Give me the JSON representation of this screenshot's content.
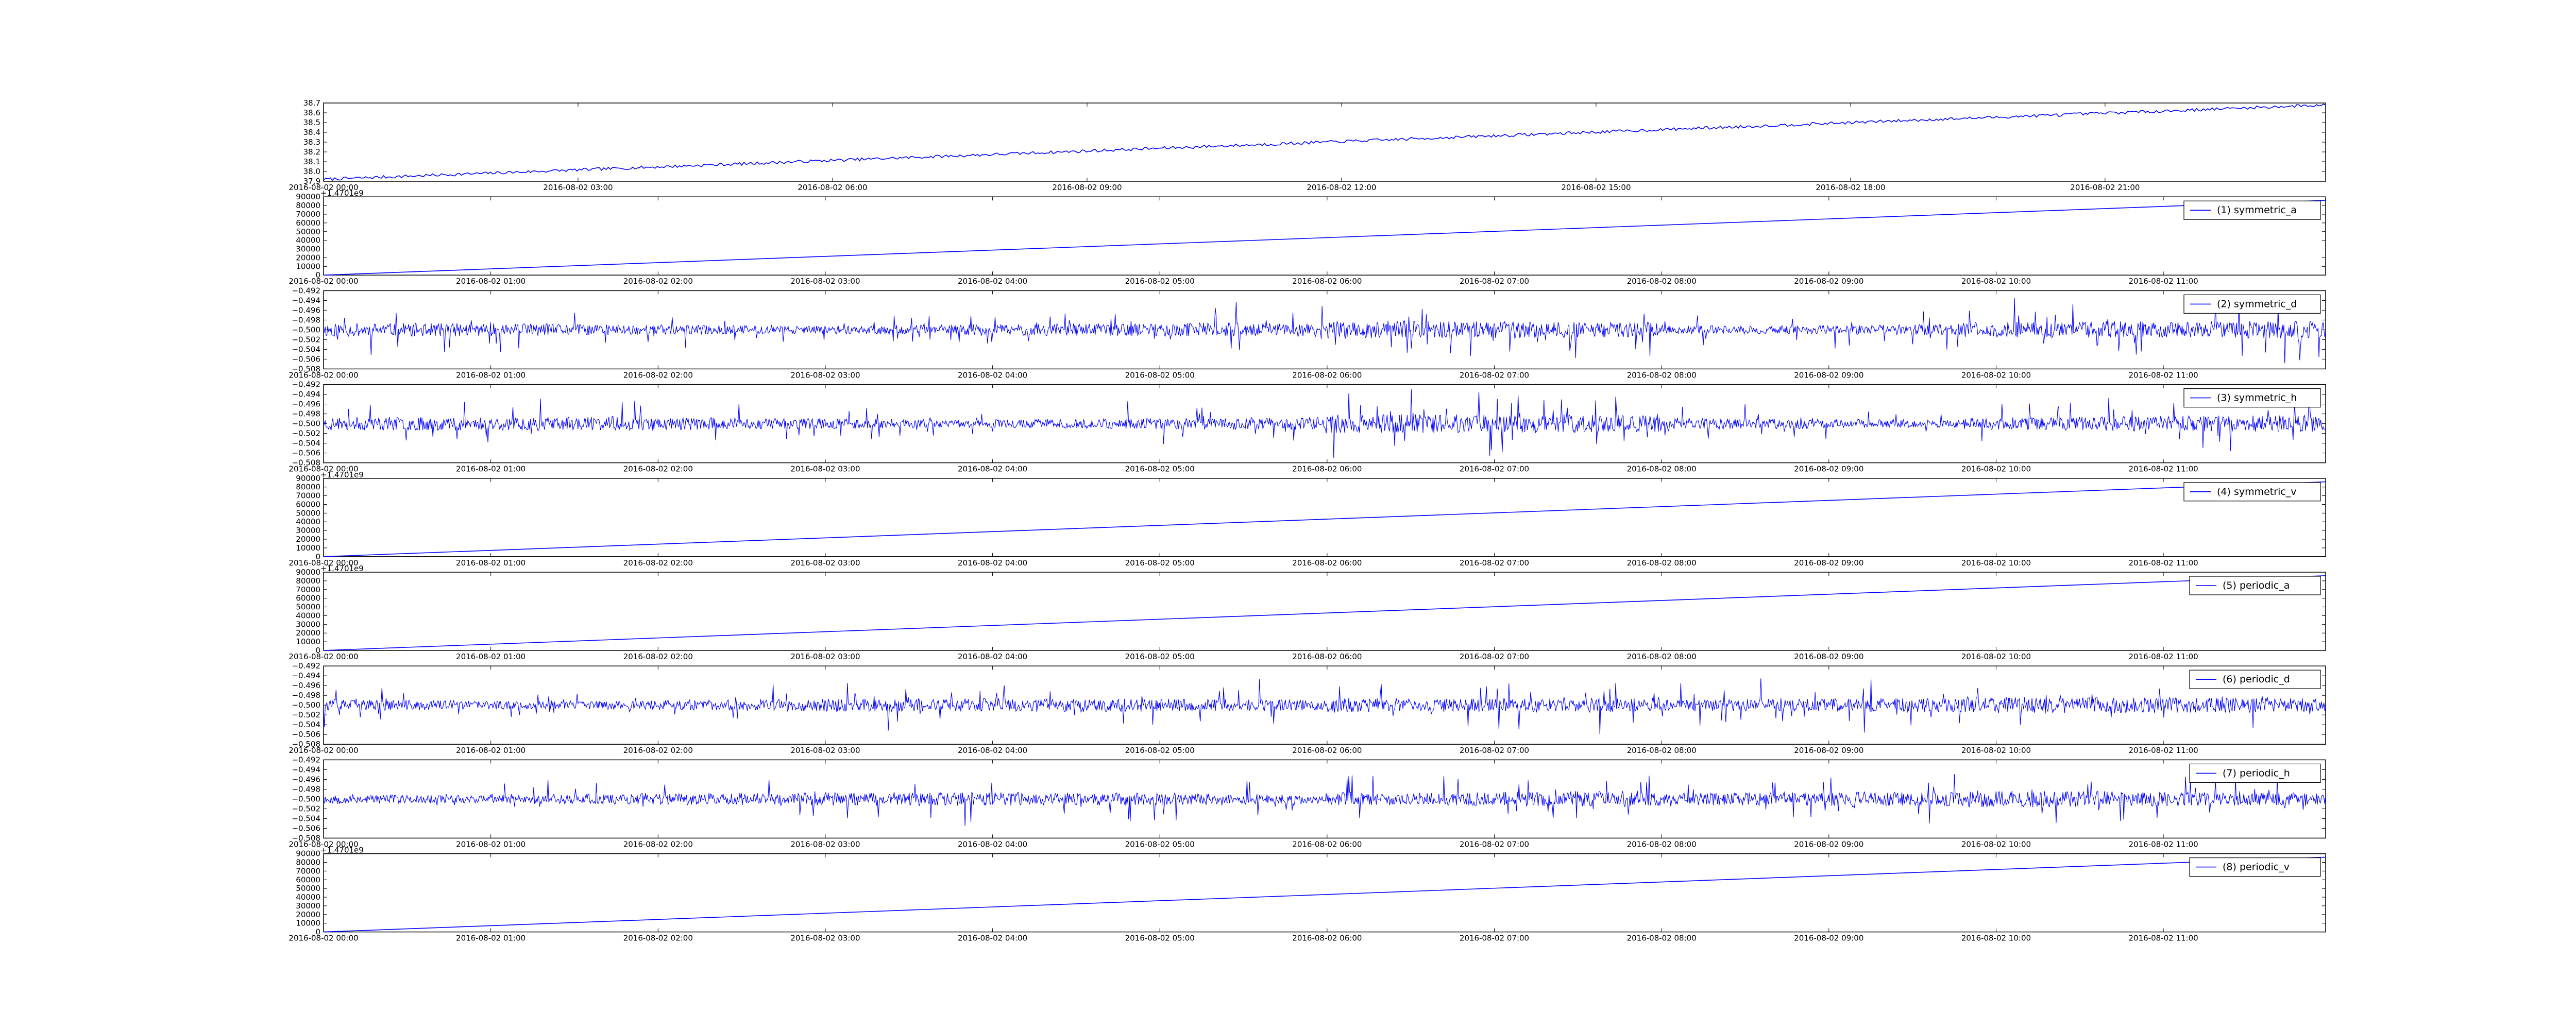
{
  "colors": {
    "line": "#0000ff",
    "axes": "#000000",
    "background": "#ffffff"
  },
  "chart_data": [
    {
      "type": "line",
      "name": "",
      "offset_text": "",
      "xticks": [
        "2016-08-02 00:00",
        "2016-08-02 03:00",
        "2016-08-02 06:00",
        "2016-08-02 09:00",
        "2016-08-02 12:00",
        "2016-08-02 15:00",
        "2016-08-02 18:00",
        "2016-08-02 21:00"
      ],
      "yticks": [
        "37.9",
        "38.0",
        "38.1",
        "38.2",
        "38.3",
        "38.4",
        "38.5",
        "38.6",
        "38.7"
      ],
      "ylim": [
        37.9,
        38.7
      ],
      "xlim_hours": [
        0,
        23.6
      ],
      "shape": "ramp",
      "series": {
        "x_hours": [
          0,
          23.6
        ],
        "y": [
          37.92,
          38.68
        ]
      }
    },
    {
      "type": "line",
      "name": "(1) symmetric_a",
      "offset_text": "+1.4701e9",
      "xticks": [
        "2016-08-02 00:00",
        "2016-08-02 01:00",
        "2016-08-02 02:00",
        "2016-08-02 03:00",
        "2016-08-02 04:00",
        "2016-08-02 05:00",
        "2016-08-02 06:00",
        "2016-08-02 07:00",
        "2016-08-02 08:00",
        "2016-08-02 09:00",
        "2016-08-02 10:00",
        "2016-08-02 11:00"
      ],
      "yticks": [
        "0",
        "10000",
        "20000",
        "30000",
        "40000",
        "50000",
        "60000",
        "70000",
        "80000",
        "90000"
      ],
      "ylim": [
        0,
        90000
      ],
      "xlim_hours": [
        0,
        11.97
      ],
      "shape": "ramp",
      "series": {
        "x_hours": [
          0,
          11.97
        ],
        "y": [
          0,
          86000
        ]
      }
    },
    {
      "type": "line",
      "name": "(2) symmetric_d",
      "offset_text": "",
      "xticks": [
        "2016-08-02 00:00",
        "2016-08-02 01:00",
        "2016-08-02 02:00",
        "2016-08-02 03:00",
        "2016-08-02 04:00",
        "2016-08-02 05:00",
        "2016-08-02 06:00",
        "2016-08-02 07:00",
        "2016-08-02 08:00",
        "2016-08-02 09:00",
        "2016-08-02 10:00",
        "2016-08-02 11:00"
      ],
      "yticks": [
        "−0.508",
        "−0.506",
        "−0.504",
        "−0.502",
        "−0.500",
        "−0.498",
        "−0.496",
        "−0.494",
        "−0.492"
      ],
      "ylim": [
        -0.508,
        -0.492
      ],
      "xlim_hours": [
        0,
        11.97
      ],
      "shape": "noise",
      "series": {
        "center": -0.5,
        "amplitude": 0.004,
        "seed": 11
      }
    },
    {
      "type": "line",
      "name": "(3) symmetric_h",
      "offset_text": "",
      "xticks": [
        "2016-08-02 00:00",
        "2016-08-02 01:00",
        "2016-08-02 02:00",
        "2016-08-02 03:00",
        "2016-08-02 04:00",
        "2016-08-02 05:00",
        "2016-08-02 06:00",
        "2016-08-02 07:00",
        "2016-08-02 08:00",
        "2016-08-02 09:00",
        "2016-08-02 10:00",
        "2016-08-02 11:00"
      ],
      "yticks": [
        "−0.508",
        "−0.506",
        "−0.504",
        "−0.502",
        "−0.500",
        "−0.498",
        "−0.496",
        "−0.494",
        "−0.492"
      ],
      "ylim": [
        -0.508,
        -0.492
      ],
      "xlim_hours": [
        0,
        11.97
      ],
      "shape": "noise",
      "series": {
        "center": -0.5,
        "amplitude": 0.004,
        "seed": 23
      }
    },
    {
      "type": "line",
      "name": "(4) symmetric_v",
      "offset_text": "+1.4701e9",
      "xticks": [
        "2016-08-02 00:00",
        "2016-08-02 01:00",
        "2016-08-02 02:00",
        "2016-08-02 03:00",
        "2016-08-02 04:00",
        "2016-08-02 05:00",
        "2016-08-02 06:00",
        "2016-08-02 07:00",
        "2016-08-02 08:00",
        "2016-08-02 09:00",
        "2016-08-02 10:00",
        "2016-08-02 11:00"
      ],
      "yticks": [
        "0",
        "10000",
        "20000",
        "30000",
        "40000",
        "50000",
        "60000",
        "70000",
        "80000",
        "90000"
      ],
      "ylim": [
        0,
        90000
      ],
      "xlim_hours": [
        0,
        11.97
      ],
      "shape": "ramp",
      "series": {
        "x_hours": [
          0,
          11.97
        ],
        "y": [
          0,
          86000
        ]
      }
    },
    {
      "type": "line",
      "name": "(5) periodic_a",
      "offset_text": "+1.4701e9",
      "xticks": [
        "2016-08-02 00:00",
        "2016-08-02 01:00",
        "2016-08-02 02:00",
        "2016-08-02 03:00",
        "2016-08-02 04:00",
        "2016-08-02 05:00",
        "2016-08-02 06:00",
        "2016-08-02 07:00",
        "2016-08-02 08:00",
        "2016-08-02 09:00",
        "2016-08-02 10:00",
        "2016-08-02 11:00"
      ],
      "yticks": [
        "0",
        "10000",
        "20000",
        "30000",
        "40000",
        "50000",
        "60000",
        "70000",
        "80000",
        "90000"
      ],
      "ylim": [
        0,
        90000
      ],
      "xlim_hours": [
        0,
        11.97
      ],
      "shape": "ramp",
      "series": {
        "x_hours": [
          0,
          11.97
        ],
        "y": [
          0,
          86000
        ]
      }
    },
    {
      "type": "line",
      "name": "(6) periodic_d",
      "offset_text": "",
      "xticks": [
        "2016-08-02 00:00",
        "2016-08-02 01:00",
        "2016-08-02 02:00",
        "2016-08-02 03:00",
        "2016-08-02 04:00",
        "2016-08-02 05:00",
        "2016-08-02 06:00",
        "2016-08-02 07:00",
        "2016-08-02 08:00",
        "2016-08-02 09:00",
        "2016-08-02 10:00",
        "2016-08-02 11:00"
      ],
      "yticks": [
        "−0.508",
        "−0.506",
        "−0.504",
        "−0.502",
        "−0.500",
        "−0.498",
        "−0.496",
        "−0.494",
        "−0.492"
      ],
      "ylim": [
        -0.508,
        -0.492
      ],
      "xlim_hours": [
        0,
        11.97
      ],
      "shape": "noise",
      "series": {
        "center": -0.5,
        "amplitude": 0.004,
        "seed": 37
      }
    },
    {
      "type": "line",
      "name": "(7) periodic_h",
      "offset_text": "",
      "xticks": [
        "2016-08-02 00:00",
        "2016-08-02 01:00",
        "2016-08-02 02:00",
        "2016-08-02 03:00",
        "2016-08-02 04:00",
        "2016-08-02 05:00",
        "2016-08-02 06:00",
        "2016-08-02 07:00",
        "2016-08-02 08:00",
        "2016-08-02 09:00",
        "2016-08-02 10:00",
        "2016-08-02 11:00"
      ],
      "yticks": [
        "−0.508",
        "−0.506",
        "−0.504",
        "−0.502",
        "−0.500",
        "−0.498",
        "−0.496",
        "−0.494",
        "−0.492"
      ],
      "ylim": [
        -0.508,
        -0.492
      ],
      "xlim_hours": [
        0,
        11.97
      ],
      "shape": "noise",
      "series": {
        "center": -0.5,
        "amplitude": 0.004,
        "seed": 53
      }
    },
    {
      "type": "line",
      "name": "(8) periodic_v",
      "offset_text": "+1.4701e9",
      "xticks": [
        "2016-08-02 00:00",
        "2016-08-02 01:00",
        "2016-08-02 02:00",
        "2016-08-02 03:00",
        "2016-08-02 04:00",
        "2016-08-02 05:00",
        "2016-08-02 06:00",
        "2016-08-02 07:00",
        "2016-08-02 08:00",
        "2016-08-02 09:00",
        "2016-08-02 10:00",
        "2016-08-02 11:00"
      ],
      "yticks": [
        "0",
        "10000",
        "20000",
        "30000",
        "40000",
        "50000",
        "60000",
        "70000",
        "80000",
        "90000"
      ],
      "ylim": [
        0,
        90000
      ],
      "xlim_hours": [
        0,
        11.97
      ],
      "shape": "ramp",
      "series": {
        "x_hours": [
          0,
          11.97
        ],
        "y": [
          0,
          86000
        ]
      }
    }
  ]
}
